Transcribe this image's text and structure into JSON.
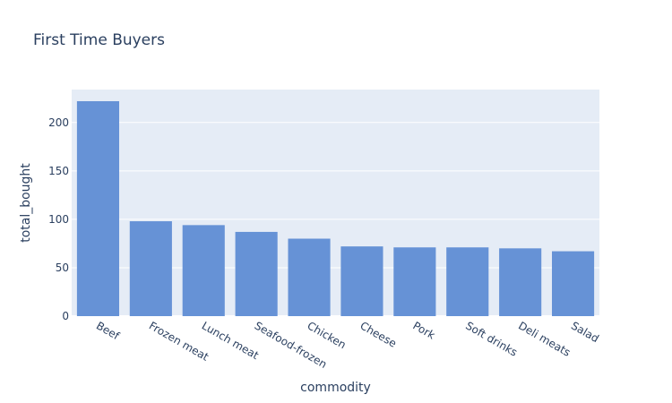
{
  "chart_data": {
    "type": "bar",
    "title": "First Time Buyers",
    "xlabel": "commodity",
    "ylabel": "total_bought",
    "categories": [
      "Beef",
      "Frozen meat",
      "Lunch meat",
      "Seafood-frozen",
      "Chicken",
      "Cheese",
      "Pork",
      "Soft drinks",
      "Deli meats",
      "Salad"
    ],
    "values": [
      222,
      98,
      94,
      87,
      80,
      72,
      71,
      71,
      70,
      67
    ],
    "ylim": [
      0,
      234
    ],
    "yticks": [
      0,
      50,
      100,
      150,
      200
    ],
    "grid": true,
    "legend": "none",
    "colors": {
      "bar": "#6692d6",
      "plot_background": "#e5ecf6",
      "text": "#2a3f5f"
    }
  }
}
